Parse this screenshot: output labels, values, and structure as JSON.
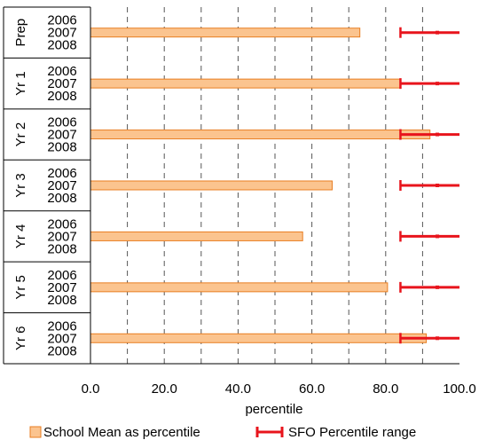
{
  "chart_data": {
    "type": "bar",
    "orientation": "horizontal",
    "title": "",
    "xlabel": "percentile",
    "ylabel": "",
    "xlim": [
      0,
      100
    ],
    "x_ticks": [
      "0.0",
      "20.0",
      "40.0",
      "60.0",
      "80.0",
      "100.0"
    ],
    "x_tick_values": [
      0,
      20,
      40,
      60,
      80,
      100
    ],
    "grid": "vertical dashed every 10",
    "legend_position": "bottom",
    "groups": [
      {
        "label": "Prep",
        "years": [
          "2006",
          "2007",
          "2008"
        ],
        "mean_year": "2007",
        "mean": 73,
        "range": [
          84,
          100
        ],
        "range_mid": 94
      },
      {
        "label": "Yr 1",
        "years": [
          "2006",
          "2007",
          "2008"
        ],
        "mean_year": "2007",
        "mean": 84,
        "range": [
          84,
          100
        ],
        "range_mid": 94
      },
      {
        "label": "Yr 2",
        "years": [
          "2006",
          "2007",
          "2008"
        ],
        "mean_year": "2007",
        "mean": 92,
        "range": [
          84,
          100
        ],
        "range_mid": 94
      },
      {
        "label": "Yr 3",
        "years": [
          "2006",
          "2007",
          "2008"
        ],
        "mean_year": "2007",
        "mean": 65.5,
        "range": [
          84,
          100
        ],
        "range_mid": 94
      },
      {
        "label": "Yr 4",
        "years": [
          "2006",
          "2007",
          "2008"
        ],
        "mean_year": "2007",
        "mean": 57.5,
        "range": [
          84,
          100
        ],
        "range_mid": 94
      },
      {
        "label": "Yr 5",
        "years": [
          "2006",
          "2007",
          "2008"
        ],
        "mean_year": "2007",
        "mean": 80.5,
        "range": [
          84,
          100
        ],
        "range_mid": 94
      },
      {
        "label": "Yr 6",
        "years": [
          "2006",
          "2007",
          "2008"
        ],
        "mean_year": "2007",
        "mean": 91,
        "range": [
          84,
          100
        ],
        "range_mid": 94
      }
    ],
    "series": [
      {
        "name": "School Mean as percentile",
        "color": "#FBC48F",
        "stroke": "#E87E22"
      },
      {
        "name": "SFO Percentile range",
        "color": "#E8141C"
      }
    ]
  }
}
